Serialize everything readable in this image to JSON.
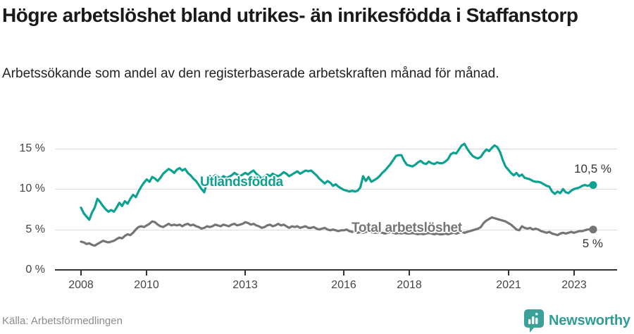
{
  "header": {
    "title": "Högre arbetslöshet bland utrikes- än inrikesfödda i Staffanstorp",
    "subtitle": "Arbetssökande som andel av den registerbaserade arbetskraften månad för månad."
  },
  "footer": {
    "source": "Källa: Arbetsförmedlingen",
    "brand": "Newsworthy"
  },
  "colors": {
    "foreign_born_line": "#0ba292",
    "total_line": "#757575",
    "brand_teal": "#3ba099",
    "axis": "#333333",
    "gridline": "#dcdcdc"
  },
  "chart_data": {
    "type": "line",
    "title": "Högre arbetslöshet bland utrikes- än inrikesfödda i Staffanstorp",
    "subtitle": "Arbetssökande som andel av den registerbaserade arbetskraften månad för månad.",
    "x_unit": "month",
    "x_range": [
      "2008-01",
      "2023-08"
    ],
    "ylim": [
      0,
      16
    ],
    "grid": "horizontal",
    "y_ticks": [
      0,
      5,
      10,
      15
    ],
    "y_tick_labels": [
      "0 %",
      "5 %",
      "10 %",
      "15 %"
    ],
    "x_ticks": [
      2008,
      2010,
      2013,
      2016,
      2018,
      2021,
      2023
    ],
    "x_tick_labels": [
      "2008",
      "2010",
      "2013",
      "2016",
      "2018",
      "2021",
      "2023"
    ],
    "series": [
      {
        "name": "Utlandsfödda",
        "color": "#0ba292",
        "end_label": "10,5 %",
        "end_value": 10.5,
        "values": [
          7.7,
          7.0,
          6.6,
          6.2,
          7.1,
          7.7,
          8.8,
          8.4,
          7.9,
          7.5,
          7.2,
          7.4,
          7.2,
          7.7,
          8.3,
          7.9,
          8.5,
          8.2,
          8.8,
          9.3,
          9.0,
          9.7,
          10.3,
          10.8,
          11.2,
          10.9,
          11.5,
          11.3,
          11.0,
          11.4,
          11.9,
          12.2,
          12.5,
          12.3,
          12.0,
          12.4,
          12.6,
          12.3,
          12.5,
          12.0,
          11.7,
          11.3,
          11.0,
          10.5,
          10.0,
          9.6,
          10.8,
          11.6,
          11.4,
          11.7,
          11.5,
          11.3,
          11.6,
          11.4,
          11.5,
          11.7,
          12.0,
          11.8,
          11.6,
          11.8,
          12.0,
          11.8,
          12.1,
          12.3,
          11.9,
          11.6,
          11.3,
          11.5,
          11.8,
          11.6,
          11.9,
          11.7,
          11.6,
          11.8,
          12.1,
          11.9,
          11.6,
          11.8,
          12.0,
          12.2,
          11.9,
          12.1,
          12.3,
          12.2,
          12.3,
          12.0,
          11.7,
          11.3,
          11.0,
          10.7,
          11.0,
          10.8,
          10.4,
          10.6,
          10.3,
          10.1,
          9.9,
          9.8,
          9.7,
          9.8,
          9.7,
          9.8,
          10.2,
          11.6,
          11.0,
          11.5,
          10.9,
          11.1,
          11.3,
          11.6,
          12.0,
          12.3,
          12.7,
          13.1,
          13.6,
          14.1,
          14.2,
          14.2,
          13.5,
          13.0,
          12.9,
          12.8,
          13.0,
          13.3,
          13.5,
          13.2,
          13.1,
          13.4,
          13.2,
          13.1,
          13.3,
          13.2,
          13.2,
          13.4,
          13.7,
          14.3,
          14.5,
          14.4,
          14.9,
          15.4,
          15.6,
          15.0,
          14.5,
          14.1,
          13.9,
          13.8,
          14.0,
          14.5,
          14.9,
          14.7,
          15.1,
          15.4,
          15.2,
          14.6,
          13.6,
          12.8,
          12.4,
          12.0,
          11.7,
          12.0,
          11.6,
          11.8,
          11.4,
          11.3,
          11.2,
          11.0,
          10.9,
          10.9,
          10.8,
          10.6,
          10.4,
          10.3,
          9.7,
          9.4,
          9.7,
          9.5,
          10.0,
          9.6,
          9.5,
          9.8,
          10.0,
          10.1,
          10.2,
          10.4,
          10.5,
          10.4,
          10.5,
          10.5
        ]
      },
      {
        "name": "Total arbetslöshet",
        "color": "#757575",
        "end_label": "5 %",
        "end_value": 5.0,
        "values": [
          3.5,
          3.4,
          3.2,
          3.3,
          3.1,
          3.0,
          3.2,
          3.4,
          3.6,
          3.5,
          3.4,
          3.5,
          3.6,
          3.8,
          4.0,
          3.9,
          4.2,
          4.4,
          4.3,
          4.6,
          5.0,
          5.3,
          5.4,
          5.3,
          5.5,
          5.7,
          6.0,
          5.9,
          5.6,
          5.4,
          5.3,
          5.5,
          5.7,
          5.5,
          5.6,
          5.5,
          5.6,
          5.4,
          5.6,
          5.7,
          5.5,
          5.6,
          5.4,
          5.3,
          5.1,
          5.2,
          5.4,
          5.3,
          5.4,
          5.6,
          5.5,
          5.4,
          5.6,
          5.5,
          5.4,
          5.6,
          5.7,
          5.5,
          5.6,
          5.7,
          5.9,
          5.8,
          5.6,
          5.7,
          5.5,
          5.4,
          5.2,
          5.3,
          5.5,
          5.6,
          5.4,
          5.5,
          5.7,
          5.5,
          5.6,
          5.4,
          5.2,
          5.4,
          5.3,
          5.4,
          5.2,
          5.3,
          5.4,
          5.2,
          5.2,
          5.3,
          5.1,
          5.0,
          5.1,
          5.2,
          5.0,
          4.9,
          5.0,
          4.9,
          4.8,
          4.9,
          4.9,
          5.0,
          4.8,
          4.7,
          4.8,
          4.6,
          4.7,
          4.6,
          4.7,
          4.8,
          4.7,
          4.6,
          4.6,
          4.7,
          4.6,
          4.5,
          4.6,
          4.7,
          4.6,
          4.5,
          4.6,
          4.5,
          4.6,
          4.5,
          4.5,
          4.6,
          4.5,
          4.4,
          4.5,
          4.4,
          4.5,
          4.6,
          4.5,
          4.4,
          4.5,
          4.4,
          4.4,
          4.5,
          4.4,
          4.5,
          4.6,
          4.5,
          4.6,
          4.7,
          4.6,
          4.7,
          4.8,
          4.9,
          5.0,
          5.1,
          5.3,
          5.8,
          6.1,
          6.3,
          6.5,
          6.4,
          6.3,
          6.2,
          6.1,
          6.0,
          5.8,
          5.6,
          5.3,
          5.0,
          4.9,
          5.4,
          5.2,
          5.1,
          5.2,
          5.0,
          5.1,
          5.0,
          4.8,
          4.7,
          4.6,
          4.7,
          4.5,
          4.4,
          4.3,
          4.5,
          4.6,
          4.5,
          4.6,
          4.7,
          4.6,
          4.7,
          4.8,
          4.8,
          4.9,
          5.0,
          5.0,
          5.0
        ]
      }
    ],
    "legend_position": "inline-labels"
  }
}
